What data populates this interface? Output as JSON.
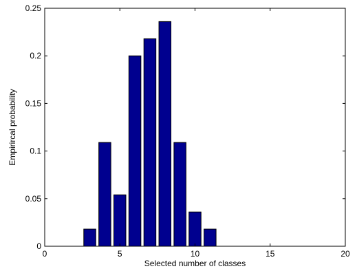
{
  "chart_data": {
    "type": "bar",
    "title": "",
    "xlabel": "Selected number of classes",
    "ylabel": "Empirircal probability",
    "x": [
      3,
      4,
      5,
      6,
      7,
      8,
      9,
      10,
      11
    ],
    "values": [
      0.018,
      0.109,
      0.054,
      0.2,
      0.218,
      0.236,
      0.109,
      0.036,
      0.018
    ],
    "xlim": [
      0,
      20
    ],
    "ylim": [
      0,
      0.25
    ],
    "xticks": [
      0,
      5,
      10,
      15,
      20
    ],
    "xtick_labels": [
      "0",
      "5",
      "10",
      "15",
      "20"
    ],
    "yticks": [
      0,
      0.05,
      0.1,
      0.15,
      0.2,
      0.25
    ],
    "ytick_labels": [
      "0",
      "0.05",
      "0.1",
      "0.15",
      "0.2",
      "0.25"
    ],
    "bar_color": "#00008f",
    "edge_color": "#000000",
    "grid": false,
    "legend": "none"
  }
}
